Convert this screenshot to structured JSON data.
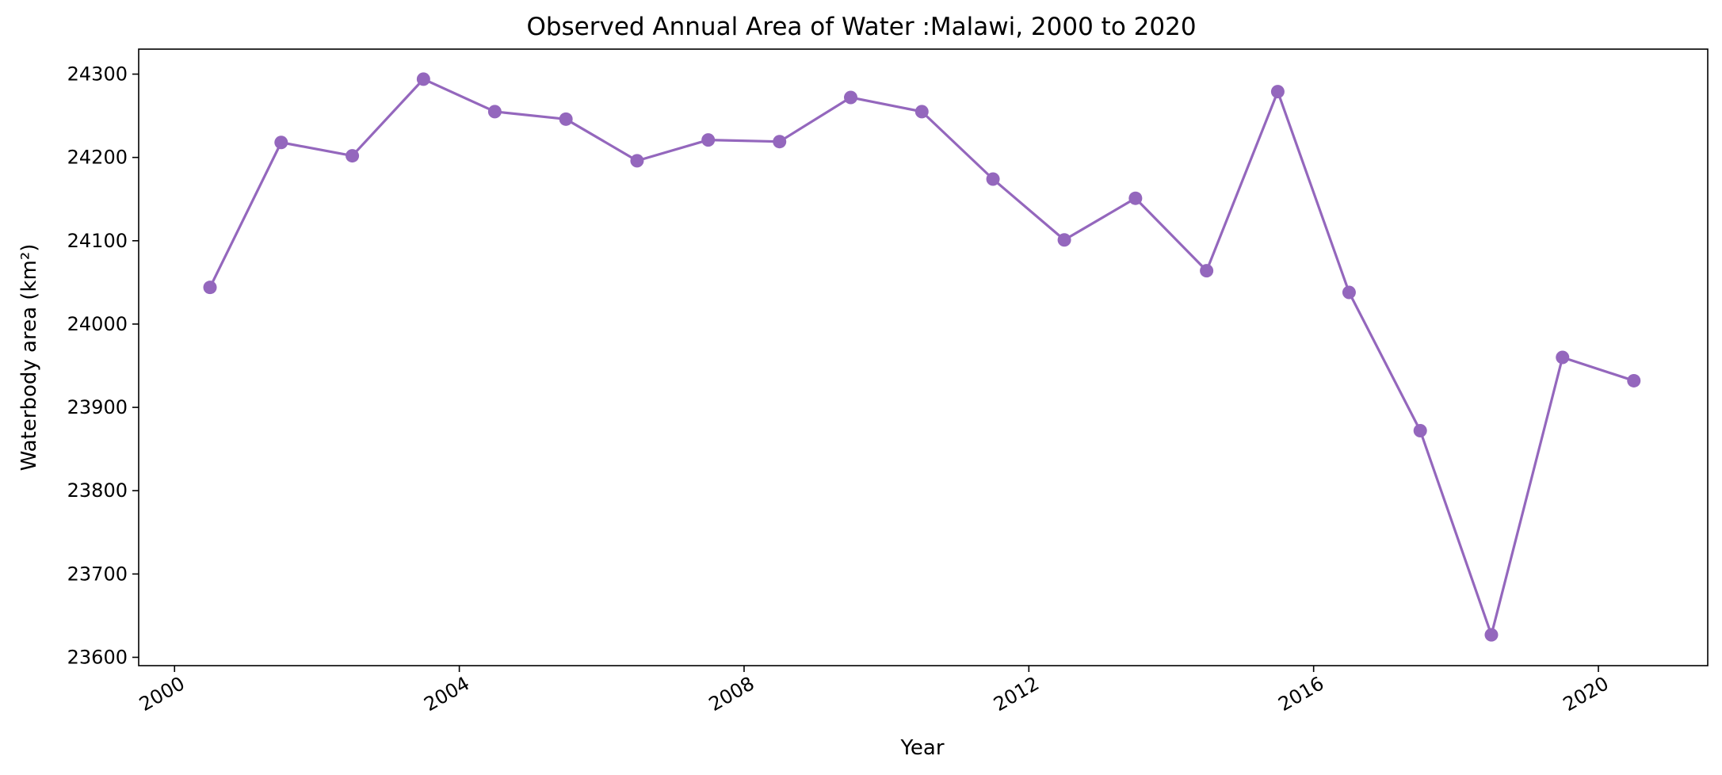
{
  "chart_data": {
    "type": "line",
    "title": "Observed Annual Area of Water :Malawi, 2000 to 2020",
    "xlabel": "Year",
    "ylabel": "Waterbody area (km²)",
    "x_axis_type": "date",
    "xlim": [
      "1999-07-01",
      "2021-07-15"
    ],
    "ylim": [
      23590,
      24330
    ],
    "x_ticks": [
      "2000-01-01",
      "2004-01-01",
      "2008-01-01",
      "2012-01-01",
      "2016-01-01",
      "2020-01-01"
    ],
    "x_tick_labels": [
      "2000",
      "2004",
      "2008",
      "2012",
      "2016",
      "2020"
    ],
    "y_ticks": [
      23600,
      23700,
      23800,
      23900,
      24000,
      24100,
      24200,
      24300
    ],
    "y_tick_labels": [
      "23600",
      "23700",
      "23800",
      "23900",
      "24000",
      "24100",
      "24200",
      "24300"
    ],
    "grid": false,
    "legend": "none",
    "color": "#9467bd",
    "series": [
      {
        "x": [
          "2000-07-01",
          "2001-07-01",
          "2002-07-01",
          "2003-07-01",
          "2004-07-01",
          "2005-07-01",
          "2006-07-01",
          "2007-07-01",
          "2008-07-01",
          "2009-07-01",
          "2010-07-01",
          "2011-07-01",
          "2012-07-01",
          "2013-07-01",
          "2014-07-01",
          "2015-07-01",
          "2016-07-01",
          "2017-07-01",
          "2018-07-01",
          "2019-07-01",
          "2020-07-01"
        ],
        "values": [
          24044,
          24218,
          24202,
          24294,
          24255,
          24246,
          24196,
          24221,
          24219,
          24272,
          24255,
          24174,
          24101,
          24151,
          24064,
          24279,
          24038,
          23872,
          23627,
          23960,
          23932
        ]
      }
    ]
  }
}
